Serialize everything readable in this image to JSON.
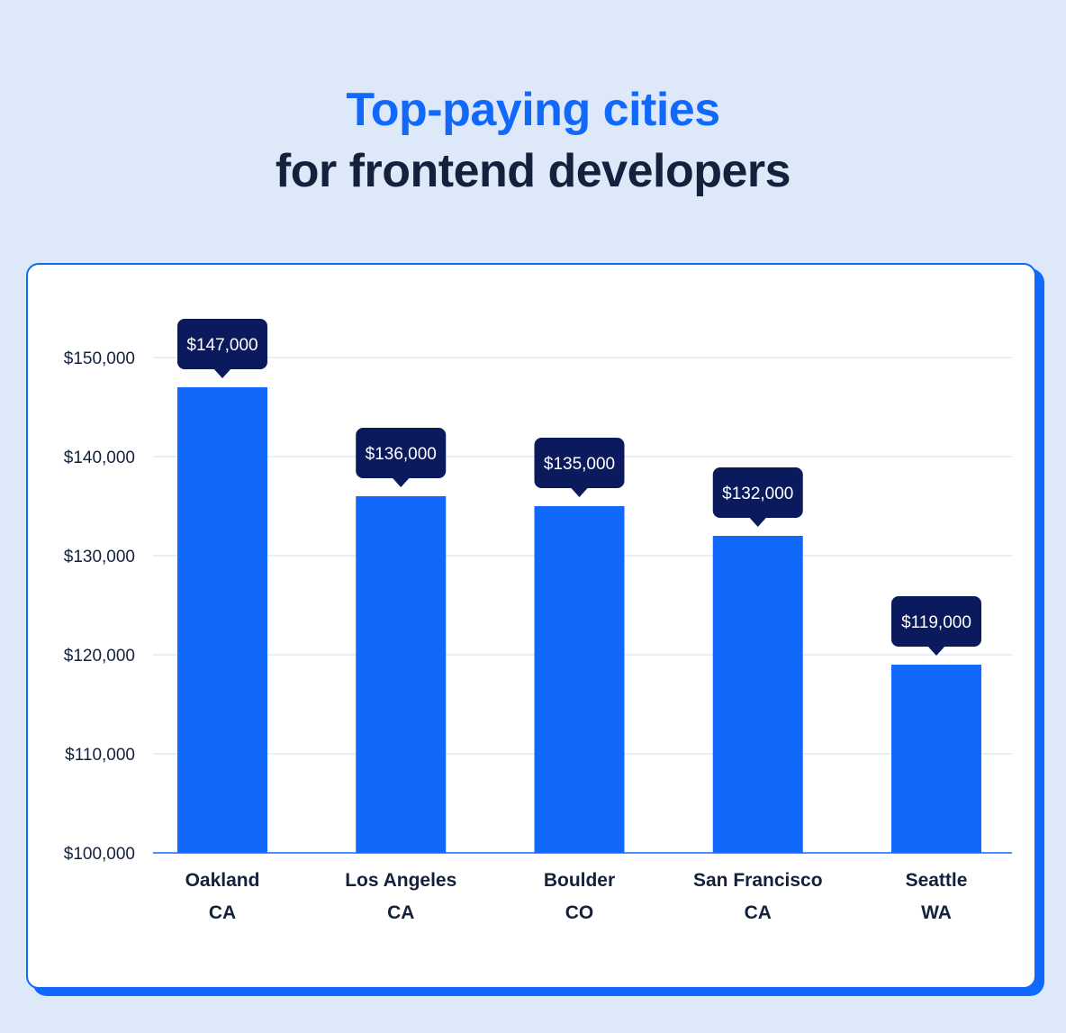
{
  "title": {
    "line1": "Top-paying cities",
    "line2": "for frontend developers"
  },
  "colors": {
    "background": "#dde8f8",
    "accent": "#1169fb",
    "dark": "#14213d",
    "label_bg": "#0b1a5c",
    "grid": "#d7e3f2"
  },
  "chart_data": {
    "type": "bar",
    "categories": [
      [
        "Oakland",
        "CA"
      ],
      [
        "Los Angeles",
        "CA"
      ],
      [
        "Boulder",
        "CO"
      ],
      [
        "San Francisco",
        "CA"
      ],
      [
        "Seattle",
        "WA"
      ]
    ],
    "values": [
      147000,
      136000,
      135000,
      132000,
      119000
    ],
    "data_labels": [
      "$147,000",
      "$136,000",
      "$135,000",
      "$132,000",
      "$119,000"
    ],
    "yticks": [
      100000,
      110000,
      120000,
      130000,
      140000,
      150000
    ],
    "ytick_labels": [
      "$100,000",
      "$110,000",
      "$120,000",
      "$130,000",
      "$140,000",
      "$150,000"
    ],
    "ylim": [
      100000,
      150000
    ],
    "grid": true
  }
}
